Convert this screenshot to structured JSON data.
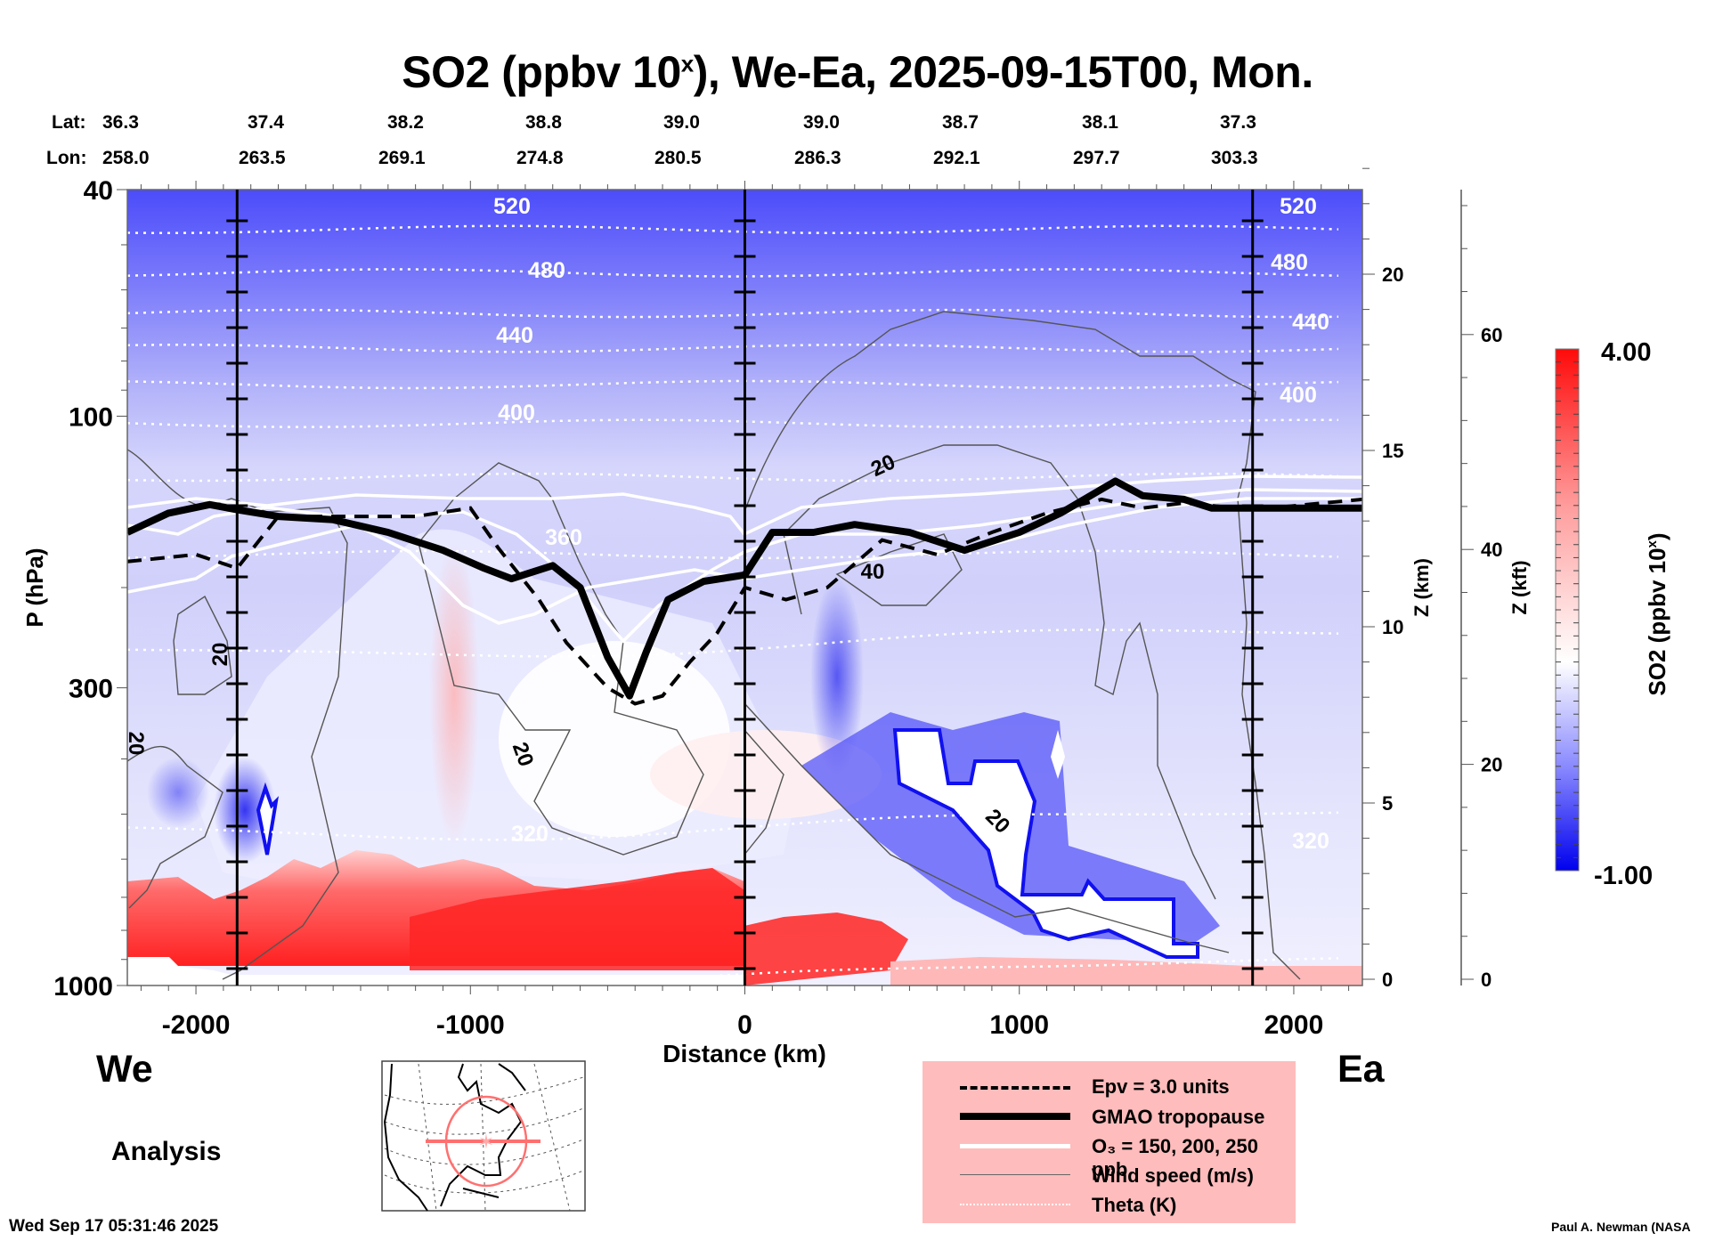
{
  "title": {
    "main": "SO2 (ppbv 10",
    "sup": "x",
    "rest": "), We-Ea, 2025-09-15T00, Mon."
  },
  "latlon": {
    "lat_label": "Lat:",
    "lon_label": "Lon:",
    "lat": [
      "36.3",
      "37.4",
      "38.2",
      "38.8",
      "39.0",
      "39.0",
      "38.7",
      "38.1",
      "37.3"
    ],
    "lon": [
      "258.0",
      "263.5",
      "269.1",
      "274.8",
      "280.5",
      "286.3",
      "292.1",
      "297.7",
      "303.3"
    ]
  },
  "direction": {
    "west": "We",
    "east": "Ea"
  },
  "mode_label": "Analysis",
  "timestamp": "Wed Sep 17 05:31:46 2025",
  "credit": "Paul A. Newman (NASA",
  "legend": {
    "items": [
      {
        "label": "Epv = 3.0 units",
        "style": "dashed-black"
      },
      {
        "label": "GMAO tropopause",
        "style": "thick-black"
      },
      {
        "label": "O₃ = 150, 200, 250 ppb",
        "style": "white"
      },
      {
        "label": "Wind speed (m/s)",
        "style": "thin-gray"
      },
      {
        "label": "Theta (K)",
        "style": "dotted-white"
      }
    ],
    "background": "#ffbcbc"
  },
  "colorbar": {
    "label": "SO2 (ppbv 10",
    "label_sup": "x",
    "label_end": ")",
    "max_label": "4.00",
    "min_label": "-1.00",
    "min": -1.0,
    "max": 4.0,
    "low_color": "#0000ff",
    "mid_color": "#ffffff",
    "high_color": "#ff0000"
  },
  "chart_data": {
    "type": "heatmap",
    "title": "SO2 (ppbv 10^x), We-Ea, 2025-09-15T00, Mon.",
    "xlabel": "Distance (km)",
    "ylabel": "P (hPa)",
    "y2label": "Z (km)",
    "y3label": "Z (kft)",
    "xlim": [
      -2250,
      2250
    ],
    "ylim": [
      1000,
      40
    ],
    "yscale": "log",
    "x_ticks": [
      -2000,
      -1000,
      0,
      1000,
      2000
    ],
    "x_tick_labels": [
      "-2000",
      "-1000",
      "0",
      "1000",
      "2000"
    ],
    "y_ticks": [
      40,
      100,
      300,
      1000
    ],
    "y_tick_labels": [
      "40",
      "100",
      "300",
      "1000"
    ],
    "z_km_ticks": [
      0,
      5,
      10,
      15,
      20
    ],
    "z_kft_ticks": [
      0,
      20,
      40,
      60
    ],
    "section_markers_km": [
      -1850,
      0,
      1850
    ],
    "theta_contours_K": [
      320,
      360,
      400,
      440,
      480,
      520
    ],
    "wind_contour_labels_ms": [
      20,
      20,
      20,
      20,
      20,
      40
    ],
    "colorbar_range": [
      -1.0,
      4.0
    ],
    "field_description": {
      "upper_stratosphere": -0.6,
      "lower_stratosphere": 0.0,
      "tropopause_km": 13,
      "boundary_layer_west": 3.5,
      "boundary_layer_east": 1.8,
      "min_region_east_km": [
        550,
        1600
      ],
      "min_region_pressure_hPa": [
        400,
        900
      ]
    },
    "tropopause_hPa": [
      [
        -2250,
        160
      ],
      [
        -2100,
        148
      ],
      [
        -1950,
        143
      ],
      [
        -1850,
        146
      ],
      [
        -1700,
        150
      ],
      [
        -1500,
        152
      ],
      [
        -1300,
        160
      ],
      [
        -1100,
        172
      ],
      [
        -950,
        185
      ],
      [
        -850,
        193
      ],
      [
        -700,
        183
      ],
      [
        -600,
        200
      ],
      [
        -500,
        265
      ],
      [
        -420,
        310
      ],
      [
        -360,
        260
      ],
      [
        -280,
        210
      ],
      [
        -150,
        195
      ],
      [
        0,
        190
      ],
      [
        100,
        160
      ],
      [
        250,
        160
      ],
      [
        400,
        155
      ],
      [
        600,
        160
      ],
      [
        800,
        172
      ],
      [
        1000,
        160
      ],
      [
        1150,
        148
      ],
      [
        1350,
        130
      ],
      [
        1450,
        138
      ],
      [
        1600,
        140
      ],
      [
        1700,
        145
      ],
      [
        1850,
        145
      ],
      [
        2250,
        145
      ]
    ],
    "epv_hPa": [
      [
        -2250,
        180
      ],
      [
        -2000,
        175
      ],
      [
        -1850,
        185
      ],
      [
        -1700,
        150
      ],
      [
        -1400,
        150
      ],
      [
        -1200,
        150
      ],
      [
        -1000,
        145
      ],
      [
        -900,
        170
      ],
      [
        -750,
        210
      ],
      [
        -650,
        250
      ],
      [
        -500,
        300
      ],
      [
        -400,
        320
      ],
      [
        -300,
        310
      ],
      [
        -200,
        270
      ],
      [
        -100,
        240
      ],
      [
        0,
        200
      ],
      [
        150,
        210
      ],
      [
        300,
        200
      ],
      [
        500,
        165
      ],
      [
        700,
        175
      ],
      [
        900,
        160
      ],
      [
        1100,
        148
      ],
      [
        1300,
        140
      ],
      [
        1450,
        145
      ],
      [
        1600,
        142
      ],
      [
        1850,
        146
      ],
      [
        2250,
        140
      ]
    ]
  }
}
